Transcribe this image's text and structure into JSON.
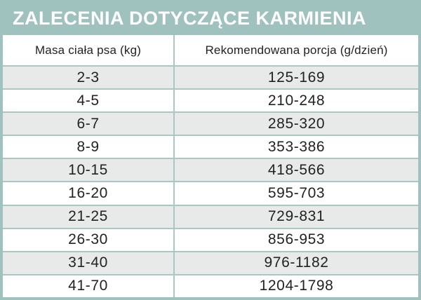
{
  "title": "ZALECENIA DOTYCZĄCE KARMIENIA",
  "colors": {
    "teal_frame": "#9fc2be",
    "grid_border": "#a9c7c3",
    "stripe_row": "#e7eae9",
    "text_dark": "#212322",
    "title_text": "#ffffff",
    "row_white": "#ffffff"
  },
  "table": {
    "columns": [
      "Masa ciała psa (kg)",
      "Rekomendowana porcja (g/dzień)"
    ],
    "rows": [
      [
        "2-3",
        "125-169"
      ],
      [
        "4-5",
        "210-248"
      ],
      [
        "6-7",
        "285-320"
      ],
      [
        "8-9",
        "353-386"
      ],
      [
        "10-15",
        "418-566"
      ],
      [
        "16-20",
        "595-703"
      ],
      [
        "21-25",
        "729-831"
      ],
      [
        "26-30",
        "856-953"
      ],
      [
        "31-40",
        "976-1182"
      ],
      [
        "41-70",
        "1204-1798"
      ]
    ]
  },
  "chart_data": {
    "type": "table",
    "title": "ZALECENIA DOTYCZĄCE KARMIENIA",
    "columns": [
      "Masa ciała psa (kg)",
      "Rekomendowana porcja (g/dzień)"
    ],
    "rows": [
      {
        "weight_kg": "2-3",
        "portion_g_per_day": "125-169"
      },
      {
        "weight_kg": "4-5",
        "portion_g_per_day": "210-248"
      },
      {
        "weight_kg": "6-7",
        "portion_g_per_day": "285-320"
      },
      {
        "weight_kg": "8-9",
        "portion_g_per_day": "353-386"
      },
      {
        "weight_kg": "10-15",
        "portion_g_per_day": "418-566"
      },
      {
        "weight_kg": "16-20",
        "portion_g_per_day": "595-703"
      },
      {
        "weight_kg": "21-25",
        "portion_g_per_day": "729-831"
      },
      {
        "weight_kg": "26-30",
        "portion_g_per_day": "856-953"
      },
      {
        "weight_kg": "31-40",
        "portion_g_per_day": "976-1182"
      },
      {
        "weight_kg": "41-70",
        "portion_g_per_day": "1204-1798"
      }
    ],
    "layout": {
      "zebra_striping": true,
      "striped_rows": "odd (1st, 3rd, 5th, ...)",
      "header_background": "#ffffff",
      "title_band_background": "#9fc2be"
    }
  }
}
